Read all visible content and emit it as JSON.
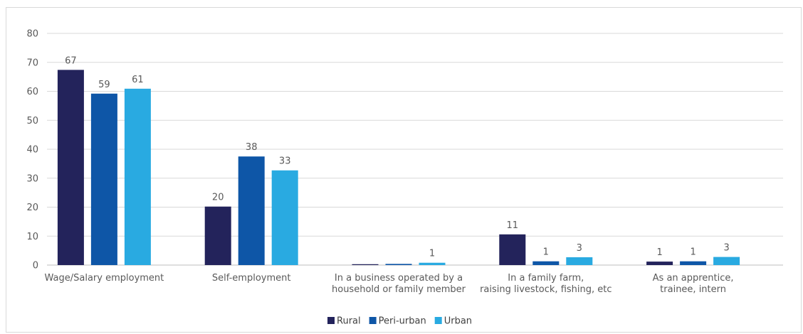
{
  "chart_data": {
    "type": "bar",
    "categories": [
      "Wage/Salary employment",
      "Self-employment",
      "In a business operated by a household or family member",
      "In a family farm, raising livestock, fishing, etc",
      "As an apprentice, trainee, intern"
    ],
    "category_lines": [
      [
        "Wage/Salary employment"
      ],
      [
        "Self-employment"
      ],
      [
        "In a business operated by a",
        "household or family member"
      ],
      [
        "In a family farm,",
        "raising livestock, fishing, etc"
      ],
      [
        "As an apprentice,",
        "trainee, intern"
      ]
    ],
    "series": [
      {
        "name": "Rural",
        "color": "#23235b",
        "values": [
          67.4,
          20.2,
          0.3,
          10.6,
          1.2
        ],
        "labels": [
          "67",
          "20",
          "",
          "11",
          "1"
        ]
      },
      {
        "name": "Peri-urban",
        "color": "#0e56a7",
        "values": [
          59.2,
          37.5,
          0.4,
          1.3,
          1.3
        ],
        "labels": [
          "59",
          "38",
          "",
          "1",
          "1"
        ]
      },
      {
        "name": "Urban",
        "color": "#29aae1",
        "values": [
          60.9,
          32.7,
          0.8,
          2.7,
          2.8
        ],
        "labels": [
          "61",
          "33",
          "1",
          "3",
          "3"
        ]
      }
    ],
    "ylim": [
      0,
      80
    ],
    "yticks": [
      "0",
      "10",
      "20",
      "30",
      "40",
      "50",
      "60",
      "70",
      "80"
    ],
    "grid": true,
    "legend_position": "bottom-center"
  }
}
